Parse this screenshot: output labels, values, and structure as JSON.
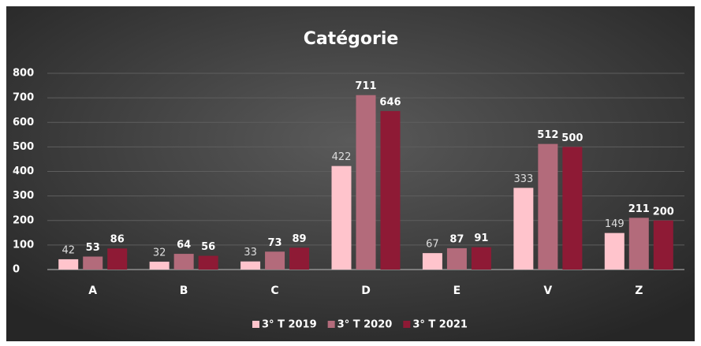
{
  "chart_data": {
    "type": "bar",
    "title": "Catégorie",
    "categories": [
      "A",
      "B",
      "C",
      "D",
      "E",
      "V",
      "Z"
    ],
    "series": [
      {
        "name": "3° T 2019",
        "color": "#ffc4cc",
        "values": [
          42,
          32,
          33,
          422,
          67,
          333,
          149
        ]
      },
      {
        "name": "3° T 2020",
        "color": "#b36b7b",
        "values": [
          53,
          64,
          73,
          711,
          87,
          512,
          211
        ]
      },
      {
        "name": "3° T 2021",
        "color": "#8e1a35",
        "values": [
          86,
          56,
          89,
          646,
          91,
          500,
          200
        ]
      }
    ],
    "ylim": [
      0,
      800
    ],
    "yticks": [
      0,
      100,
      200,
      300,
      400,
      500,
      600,
      700,
      800
    ],
    "grid": true,
    "legend": "bottom"
  }
}
